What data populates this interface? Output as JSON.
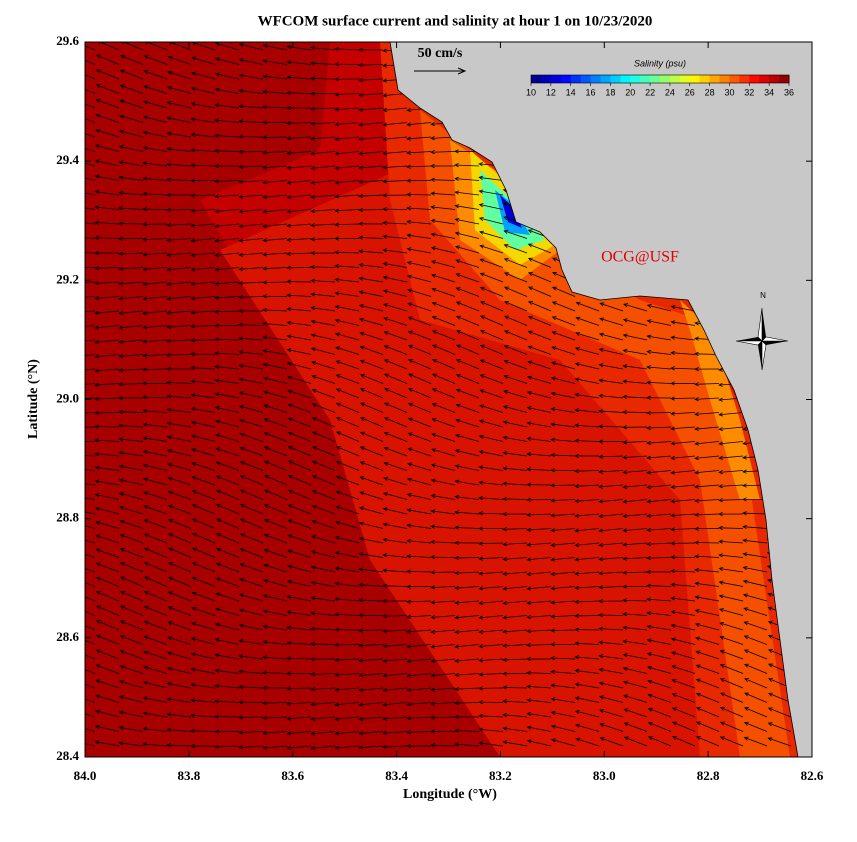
{
  "title": "WFCOM surface current and salinity at hour 1 on 10/23/2020",
  "map": {
    "xlabel": "Longitude (°W)",
    "ylabel": "Latitude (°N)",
    "xlim": [
      84.0,
      82.6
    ],
    "ylim": [
      28.4,
      29.6
    ],
    "xticks": [
      {
        "value": 84.0,
        "label": "84.0"
      },
      83.8,
      83.6,
      83.4,
      83.2,
      {
        "value": 83.0,
        "label": "83.0"
      },
      82.8,
      82.6
    ],
    "yticks": [
      28.4,
      28.6,
      28.8,
      {
        "value": 29.0,
        "label": "29.0"
      },
      29.2,
      29.4,
      29.6
    ]
  },
  "colorbar": {
    "label": "Salinity (psu)",
    "range": [
      10,
      36
    ],
    "ticks": [
      10,
      12,
      14,
      16,
      18,
      20,
      22,
      24,
      26,
      28,
      30,
      32,
      34,
      36
    ]
  },
  "annotations": {
    "scale": "50 cm/s",
    "credit": "OCG@USF",
    "north": "N"
  }
}
